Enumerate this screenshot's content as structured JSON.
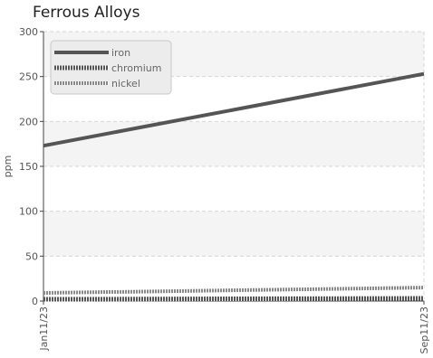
{
  "chart_data": {
    "type": "line",
    "title": "Ferrous Alloys",
    "xlabel": "",
    "ylabel": "ppm",
    "x": [
      "Jan11/23",
      "Sep11/23"
    ],
    "xlim": [
      "Jan11/23",
      "Sep11/23"
    ],
    "ylim": [
      0,
      300
    ],
    "yticks": [
      0,
      50,
      100,
      150,
      200,
      250,
      300
    ],
    "grid": true,
    "legend_position": "top-left",
    "series": [
      {
        "name": "iron",
        "values": [
          173,
          253
        ],
        "color": "#555555",
        "style": "solid"
      },
      {
        "name": "chromium",
        "values": [
          2,
          3
        ],
        "color": "#555555",
        "style": "dense-hatched"
      },
      {
        "name": "nickel",
        "values": [
          9,
          15
        ],
        "color": "#777777",
        "style": "light-hatched"
      }
    ]
  }
}
